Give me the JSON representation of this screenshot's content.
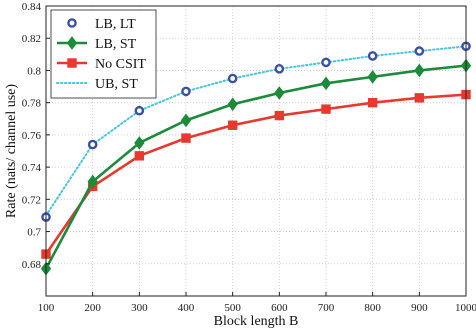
{
  "chart_data": {
    "type": "line",
    "xlabel": "Block length B",
    "ylabel": "Rate (nats/ channel use)",
    "xlim": [
      100,
      1000
    ],
    "ylim": [
      0.66,
      0.84
    ],
    "x_ticks": [
      "100",
      "200",
      "300",
      "400",
      "500",
      "600",
      "700",
      "800",
      "900",
      "1000"
    ],
    "y_ticks": [
      "0.68",
      "0.7",
      "0.72",
      "0.74",
      "0.76",
      "0.78",
      "0.8",
      "0.82",
      "0.84"
    ],
    "grid": true,
    "legend_position": "top-left",
    "x": [
      100,
      200,
      300,
      400,
      500,
      600,
      700,
      800,
      900,
      1000
    ],
    "series": [
      {
        "name": "LB, LT",
        "style": "markers-only",
        "marker": "circle",
        "color": "#3b4fa8",
        "values": [
          0.709,
          0.754,
          0.775,
          0.787,
          0.795,
          0.801,
          0.805,
          0.809,
          0.812,
          0.815
        ]
      },
      {
        "name": "LB, ST",
        "style": "solid-line",
        "marker": "diamond",
        "color": "#1a8c3a",
        "values": [
          0.677,
          0.731,
          0.755,
          0.769,
          0.779,
          0.786,
          0.792,
          0.796,
          0.8,
          0.803
        ]
      },
      {
        "name": "No CSIT",
        "style": "solid-line",
        "marker": "square",
        "color": "#e8392f",
        "values": [
          0.686,
          0.728,
          0.747,
          0.758,
          0.766,
          0.772,
          0.776,
          0.78,
          0.783,
          0.785
        ]
      },
      {
        "name": "UB, ST",
        "style": "dotted-line",
        "marker": "none",
        "color": "#49c6e0",
        "values": [
          0.71,
          0.754,
          0.775,
          0.787,
          0.795,
          0.801,
          0.805,
          0.809,
          0.812,
          0.815
        ]
      }
    ]
  }
}
